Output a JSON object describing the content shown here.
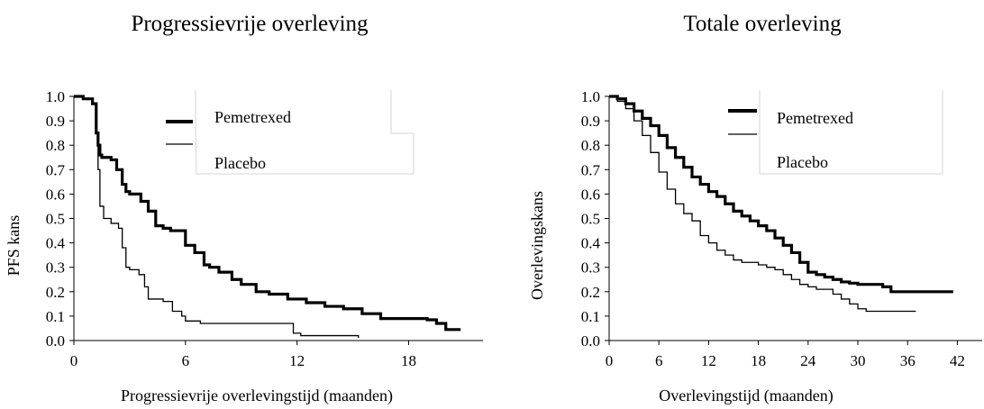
{
  "charts": [
    {
      "title": "Progressievrije overleving",
      "chart_data": {
        "type": "line",
        "title": "Progressievrije overleving",
        "xlabel": "Progressievrije overlevingstijd (maanden)",
        "ylabel": "PFS kans",
        "xlim": [
          0,
          22
        ],
        "ylim": [
          0,
          1
        ],
        "x_ticks": [
          "0",
          "6",
          "12",
          "18"
        ],
        "x_tick_values": [
          0,
          6,
          12,
          18
        ],
        "y_ticks": [
          "0.0",
          "0.1",
          "0.2",
          "0.3",
          "0.4",
          "0.5",
          "0.6",
          "0.7",
          "0.8",
          "0.9",
          "1.0"
        ],
        "y_tick_values": [
          0,
          0.1,
          0.2,
          0.3,
          0.4,
          0.5,
          0.6,
          0.7,
          0.8,
          0.9,
          1.0
        ],
        "legend_position": "top-right",
        "series": [
          {
            "name": "Pemetrexed",
            "style": "thick",
            "x": [
              0,
              0.5,
              1.0,
              1.2,
              1.3,
              1.4,
              1.5,
              2.0,
              2.3,
              2.6,
              2.8,
              3.0,
              3.6,
              4.0,
              4.4,
              4.8,
              5.2,
              6.0,
              6.5,
              7.0,
              7.3,
              7.8,
              8.5,
              9.0,
              9.8,
              10.5,
              11.5,
              12.5,
              13.5,
              14.5,
              15.5,
              16.5,
              17.5,
              18.5,
              19.0,
              19.5,
              20.0,
              20.8
            ],
            "y": [
              1.0,
              0.99,
              0.97,
              0.85,
              0.8,
              0.76,
              0.75,
              0.74,
              0.7,
              0.64,
              0.61,
              0.6,
              0.57,
              0.53,
              0.47,
              0.46,
              0.45,
              0.39,
              0.36,
              0.31,
              0.3,
              0.28,
              0.25,
              0.23,
              0.2,
              0.19,
              0.17,
              0.155,
              0.14,
              0.13,
              0.11,
              0.09,
              0.09,
              0.09,
              0.085,
              0.07,
              0.045,
              0.045
            ]
          },
          {
            "name": "Placebo",
            "style": "thin",
            "x": [
              0,
              0.5,
              1.0,
              1.2,
              1.3,
              1.4,
              1.6,
              2.0,
              2.4,
              2.6,
              2.8,
              3.0,
              3.5,
              3.8,
              4.0,
              4.8,
              5.3,
              5.8,
              6.0,
              6.8,
              11.8,
              12.2,
              15.3
            ],
            "y": [
              1.0,
              0.99,
              0.97,
              0.85,
              0.7,
              0.55,
              0.5,
              0.48,
              0.46,
              0.38,
              0.3,
              0.29,
              0.27,
              0.22,
              0.17,
              0.16,
              0.12,
              0.1,
              0.08,
              0.07,
              0.03,
              0.02,
              0.01
            ]
          }
        ]
      }
    },
    {
      "title": "Totale overleving",
      "chart_data": {
        "type": "line",
        "title": "Totale overleving",
        "xlabel": "Overlevingstijd (maanden)",
        "ylabel": "Overlevingskans",
        "xlim": [
          0,
          45
        ],
        "ylim": [
          0,
          1
        ],
        "x_ticks": [
          "0",
          "6",
          "12",
          "18",
          "24",
          "30",
          "36",
          "42"
        ],
        "x_tick_values": [
          0,
          6,
          12,
          18,
          24,
          30,
          36,
          42
        ],
        "y_ticks": [
          "0.0",
          "0.1",
          "0.2",
          "0.3",
          "0.4",
          "0.5",
          "0.6",
          "0.7",
          "0.8",
          "0.9",
          "1.0"
        ],
        "y_tick_values": [
          0,
          0.1,
          0.2,
          0.3,
          0.4,
          0.5,
          0.6,
          0.7,
          0.8,
          0.9,
          1.0
        ],
        "legend_position": "top-right",
        "series": [
          {
            "name": "Pemetrexed",
            "style": "thick",
            "x": [
              0,
              1,
              2,
              3,
              4,
              5,
              6,
              7,
              8,
              9,
              10,
              11,
              12,
              13,
              14,
              15,
              16,
              17,
              18,
              19,
              20,
              21,
              22,
              23,
              24,
              25,
              26,
              27,
              28,
              29,
              30,
              31,
              32,
              33,
              34,
              36,
              38,
              40,
              41.5
            ],
            "y": [
              1.0,
              0.99,
              0.97,
              0.94,
              0.91,
              0.88,
              0.84,
              0.79,
              0.75,
              0.71,
              0.67,
              0.64,
              0.61,
              0.59,
              0.56,
              0.53,
              0.51,
              0.49,
              0.47,
              0.45,
              0.42,
              0.39,
              0.36,
              0.32,
              0.28,
              0.27,
              0.26,
              0.25,
              0.24,
              0.235,
              0.23,
              0.23,
              0.23,
              0.22,
              0.2,
              0.2,
              0.2,
              0.2,
              0.2
            ]
          },
          {
            "name": "Placebo",
            "style": "thin",
            "x": [
              0,
              1,
              2,
              3,
              4,
              5,
              6,
              7,
              8,
              9,
              10,
              11,
              12,
              13,
              14,
              15,
              16,
              17,
              18,
              19,
              20,
              21,
              22,
              23,
              24,
              25,
              26,
              27,
              28,
              29,
              30,
              31,
              32,
              34,
              36,
              37
            ],
            "y": [
              1.0,
              0.98,
              0.95,
              0.9,
              0.84,
              0.77,
              0.69,
              0.62,
              0.56,
              0.52,
              0.49,
              0.43,
              0.4,
              0.37,
              0.35,
              0.33,
              0.32,
              0.32,
              0.31,
              0.3,
              0.29,
              0.27,
              0.25,
              0.23,
              0.22,
              0.21,
              0.21,
              0.19,
              0.17,
              0.15,
              0.13,
              0.12,
              0.12,
              0.12,
              0.12,
              0.12
            ]
          }
        ]
      }
    }
  ]
}
